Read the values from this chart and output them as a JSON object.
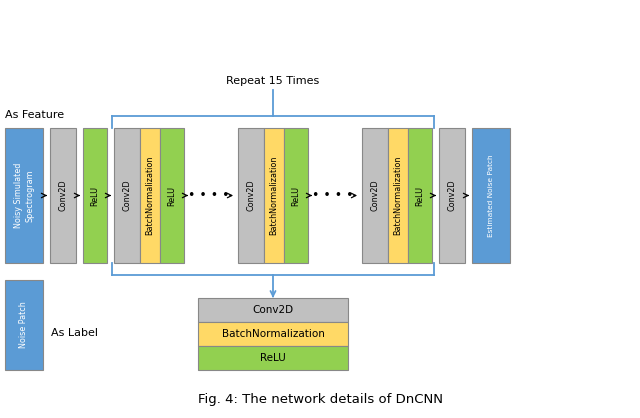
{
  "title": "Fig. 4: The network details of DnCNN",
  "repeat_text": "Repeat 15 Times",
  "as_feature_text": "As Feature",
  "as_label_text": "As Label",
  "colors": {
    "blue": "#5B9BD5",
    "gray": "#C0C0C0",
    "green": "#92D050",
    "yellow": "#FFD966",
    "white": "#FFFFFF",
    "black": "#000000",
    "brace_blue": "#5B9BD5"
  },
  "fig_bg": "#FFFFFF",
  "input_label": "Noisy Simulated\nSpectrogram",
  "output_label": "Estimated Noise Patch",
  "conv_label": "Conv2D",
  "relu_label": "ReLU",
  "bn_label": "BatchNormalization",
  "noise_label": "Noise Patch",
  "legend_conv": "Conv2D",
  "legend_bn": "BatchNormalization",
  "legend_relu": "ReLU"
}
